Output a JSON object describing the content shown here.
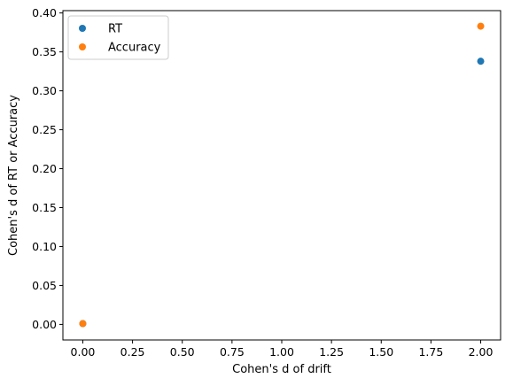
{
  "chart_data": {
    "type": "scatter",
    "title": "",
    "xlabel": "Cohen's d of drift",
    "ylabel": "Cohen's d of RT or Accuracy",
    "xlim": [
      -0.1,
      2.1
    ],
    "ylim": [
      -0.02,
      0.403
    ],
    "xticks": [
      "0.00",
      "0.25",
      "0.50",
      "0.75",
      "1.00",
      "1.25",
      "1.50",
      "1.75",
      "2.00"
    ],
    "yticks": [
      "0.00",
      "0.05",
      "0.10",
      "0.15",
      "0.20",
      "0.25",
      "0.30",
      "0.35",
      "0.40"
    ],
    "grid": false,
    "legend_position": "top-left",
    "series": [
      {
        "name": "RT",
        "color": "#1f77b4",
        "points": [
          [
            0.0,
            0.001
          ],
          [
            2.0,
            0.338
          ]
        ]
      },
      {
        "name": "Accuracy",
        "color": "#ff7f0e",
        "points": [
          [
            0.0,
            0.001
          ],
          [
            2.0,
            0.383
          ]
        ]
      }
    ]
  }
}
